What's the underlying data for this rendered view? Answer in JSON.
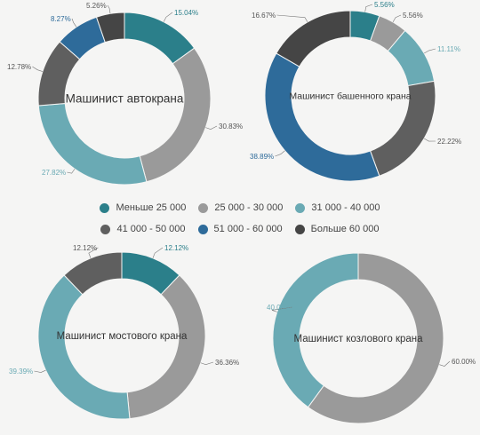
{
  "legend": {
    "items": [
      {
        "label": "Меньше 25 000",
        "color": "#2b7f8a"
      },
      {
        "label": "25 000 - 30 000",
        "color": "#9a9a9a"
      },
      {
        "label": "31 000 - 40 000",
        "color": "#6aaab4"
      },
      {
        "label": "41 000 - 50 000",
        "color": "#5f5f5f"
      },
      {
        "label": "51 000 - 60 000",
        "color": "#2e6b9a"
      },
      {
        "label": "Больше 60 000",
        "color": "#454545"
      }
    ]
  },
  "chart_data": [
    {
      "type": "pie",
      "title": "Машинист автокрана",
      "categories": [
        "Меньше 25 000",
        "25 000 - 30 000",
        "31 000 - 40 000",
        "41 000 - 50 000",
        "51 000 - 60 000",
        "Больше 60 000"
      ],
      "values": [
        15.04,
        30.83,
        27.82,
        12.78,
        8.27,
        5.26
      ],
      "labels": [
        "15.04%",
        "30.83%",
        "27.82%",
        "12.78%",
        "8.27%",
        "5.26%"
      ]
    },
    {
      "type": "pie",
      "title": "Машинист башенного крана",
      "categories": [
        "Меньше 25 000",
        "25 000 - 30 000",
        "31 000 - 40 000",
        "41 000 - 50 000",
        "51 000 - 60 000",
        "Больше 60 000"
      ],
      "values": [
        5.56,
        5.56,
        11.11,
        22.22,
        38.89,
        16.67
      ],
      "labels": [
        "5.56%",
        "5.56%",
        "11.11%",
        "22.22%",
        "38.89%",
        "16.67%"
      ]
    },
    {
      "type": "pie",
      "title": "Машинист мостового крана",
      "categories": [
        "Меньше 25 000",
        "25 000 - 30 000",
        "31 000 - 40 000",
        "41 000 - 50 000",
        "51 000 - 60 000",
        "Больше 60 000"
      ],
      "values": [
        12.12,
        36.36,
        39.39,
        12.12,
        0,
        0
      ],
      "labels": [
        "12.12%",
        "36.36%",
        "39.39%",
        "12.12%",
        "",
        ""
      ]
    },
    {
      "type": "pie",
      "title": "Машинист козлового крана",
      "categories": [
        "Меньше 25 000",
        "25 000 - 30 000",
        "31 000 - 40 000",
        "41 000 - 50 000",
        "51 000 - 60 000",
        "Больше 60 000"
      ],
      "values": [
        0,
        60.0,
        40.0,
        0,
        0,
        0
      ],
      "labels": [
        "",
        "60.00%",
        "40.00%",
        "",
        "",
        ""
      ]
    }
  ]
}
